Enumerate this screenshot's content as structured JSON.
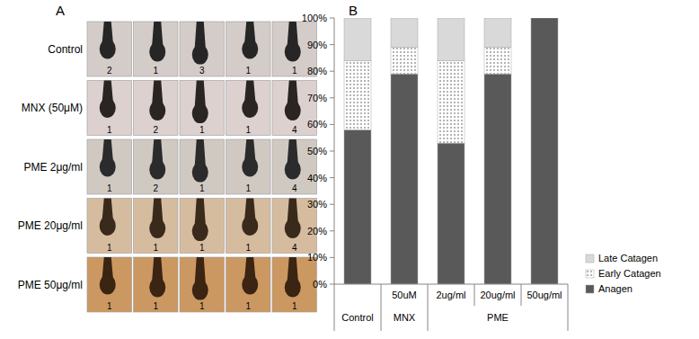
{
  "panel_labels": [
    "A",
    "B"
  ],
  "panel_a": {
    "rows": [
      {
        "label": "Control",
        "stages": [
          2,
          1,
          3,
          1,
          1
        ]
      },
      {
        "label": "MNX (50μM)",
        "stages": [
          1,
          2,
          1,
          1,
          4
        ]
      },
      {
        "label": "PME 2μg/ml",
        "stages": [
          1,
          2,
          1,
          1,
          4
        ]
      },
      {
        "label": "PME 20μg/ml",
        "stages": [
          1,
          1,
          1,
          1,
          4
        ]
      },
      {
        "label": "PME 50μg/ml",
        "stages": [
          1,
          1,
          1,
          1,
          1
        ]
      }
    ]
  },
  "chart_data": {
    "type": "bar",
    "stacked": true,
    "categories": [
      null,
      "50uM",
      "2ug/ml",
      "20ug/ml",
      "50ug/ml"
    ],
    "groups": [
      {
        "label": "Control",
        "count": 1
      },
      {
        "label": "MNX",
        "count": 1
      },
      {
        "label": "PME",
        "count": 3
      }
    ],
    "series": [
      {
        "name": "Anagen",
        "color": "#595959",
        "values": [
          58,
          79,
          53,
          79,
          100
        ]
      },
      {
        "name": "Early Catagen",
        "color": "#ffffff",
        "values": [
          26,
          10,
          31,
          10,
          0
        ]
      },
      {
        "name": "Late Catagen",
        "color": "#d9d9d9",
        "values": [
          16,
          11,
          16,
          11,
          0
        ]
      }
    ],
    "ylim": [
      0,
      100
    ],
    "yticks": [
      {
        "value": 0,
        "label": "0%"
      },
      {
        "value": 10,
        "label": "10%"
      },
      {
        "value": 20,
        "label": "20%"
      },
      {
        "value": 30,
        "label": "30%"
      },
      {
        "value": 40,
        "label": "40%"
      },
      {
        "value": 50,
        "label": "50%"
      },
      {
        "value": 60,
        "label": "60%"
      },
      {
        "value": 70,
        "label": "70%"
      },
      {
        "value": 80,
        "label": "80%"
      },
      {
        "value": 90,
        "label": "90%"
      },
      {
        "value": 100,
        "label": "100%"
      }
    ],
    "grid": false,
    "legend": "right"
  }
}
